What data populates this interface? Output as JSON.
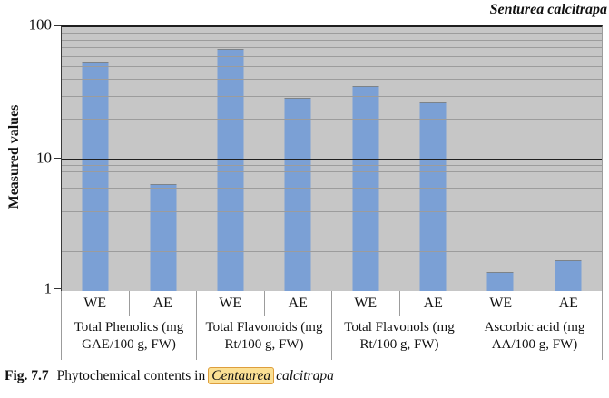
{
  "chart_data": {
    "type": "bar",
    "title": "Senturea calcitrapa",
    "ylabel": "Measured values",
    "yscale": "log",
    "ylim": [
      1,
      100
    ],
    "ytick_labels": [
      "100",
      "10",
      "1"
    ],
    "bar_color": "#7ba0d5",
    "plot_bg": "#c6c6c6",
    "grid": "on",
    "legend": "none",
    "gridlines": {
      "minor": [
        2,
        3,
        4,
        5,
        6,
        7,
        8,
        9,
        20,
        30,
        40,
        50,
        60,
        70,
        80,
        90
      ],
      "major": [
        10
      ]
    },
    "groups": [
      {
        "label": "Total Phenolics (mg GAE/100 g, FW)",
        "bars": [
          {
            "name": "WE",
            "value": 55
          },
          {
            "name": "AE",
            "value": 6.5
          }
        ]
      },
      {
        "label": "Total Flavonoids (mg Rt/100 g, FW)",
        "bars": [
          {
            "name": "WE",
            "value": 68
          },
          {
            "name": "AE",
            "value": 29
          }
        ]
      },
      {
        "label": "Total Flavonols (mg Rt/100 g, FW)",
        "bars": [
          {
            "name": "WE",
            "value": 36
          },
          {
            "name": "AE",
            "value": 27
          }
        ]
      },
      {
        "label": "Ascorbic acid (mg AA/100 g, FW)",
        "bars": [
          {
            "name": "WE",
            "value": 1.4
          },
          {
            "name": "AE",
            "value": 1.7
          }
        ]
      }
    ]
  },
  "caption": {
    "fig_label": "Fig. 7.7",
    "text": "Phytochemical contents in",
    "highlight": "Centaurea",
    "suffix": "calcitrapa"
  }
}
